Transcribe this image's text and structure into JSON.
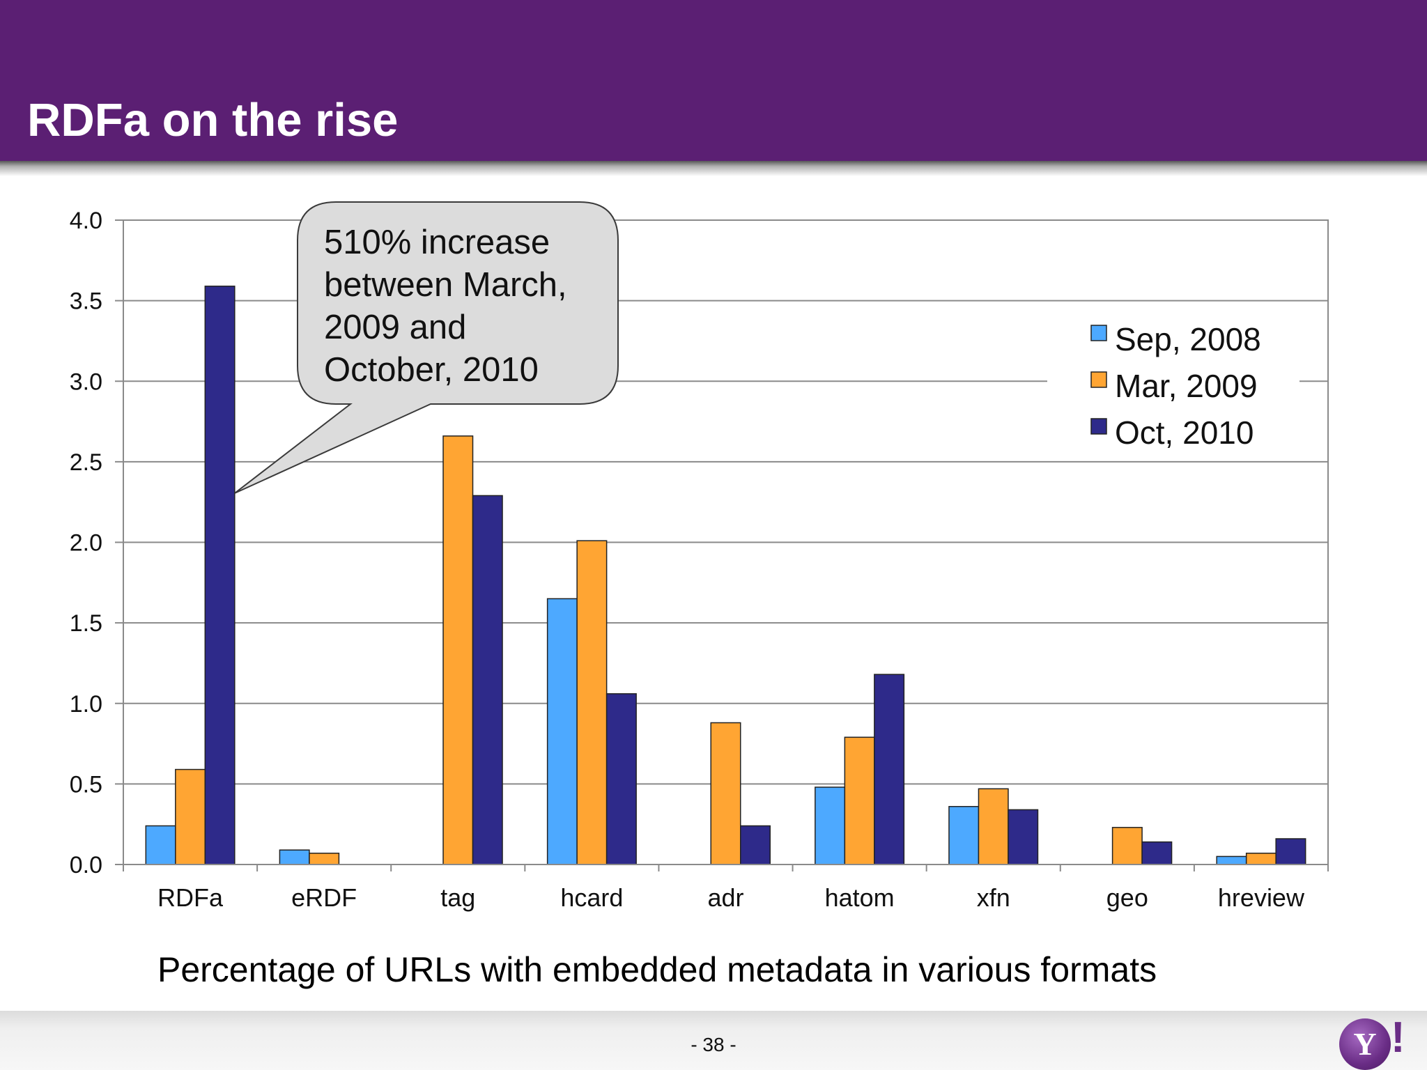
{
  "slide": {
    "title": "RDFa on the rise",
    "caption": "Percentage of URLs with embedded metadata in various formats",
    "page_number": "- 38 -",
    "logo_icon": "yahoo-logo-icon",
    "logo_text": "Y",
    "logo_mark": "!"
  },
  "chart_data": {
    "type": "bar",
    "title": "",
    "xlabel": "",
    "ylabel": "",
    "categories": [
      "RDFa",
      "eRDF",
      "tag",
      "hcard",
      "adr",
      "hatom",
      "xfn",
      "geo",
      "hreview"
    ],
    "series": [
      {
        "name": "Sep, 2008",
        "color": "#4da9ff",
        "values": [
          0.24,
          0.09,
          0,
          1.65,
          0,
          0.48,
          0.36,
          0,
          0.05
        ]
      },
      {
        "name": "Mar, 2009",
        "color": "#ffa533",
        "values": [
          0.59,
          0.07,
          2.66,
          2.01,
          0.88,
          0.79,
          0.47,
          0.23,
          0.07
        ]
      },
      {
        "name": "Oct, 2010",
        "color": "#2e2a8a",
        "values": [
          3.59,
          0,
          2.29,
          1.06,
          0.24,
          1.18,
          0.34,
          0.14,
          0.16
        ]
      }
    ],
    "ylim": [
      0,
      4.0
    ],
    "y_ticks": [
      "0.0",
      "0.5",
      "1.0",
      "1.5",
      "2.0",
      "2.5",
      "3.0",
      "3.5",
      "4.0"
    ],
    "grid": true,
    "legend_position": "top-right",
    "annotation": {
      "text_lines": [
        "510% increase",
        "between March,",
        "2009 and",
        "October, 2010"
      ],
      "points_to": {
        "category": "RDFa",
        "series": "Oct, 2010"
      }
    }
  }
}
